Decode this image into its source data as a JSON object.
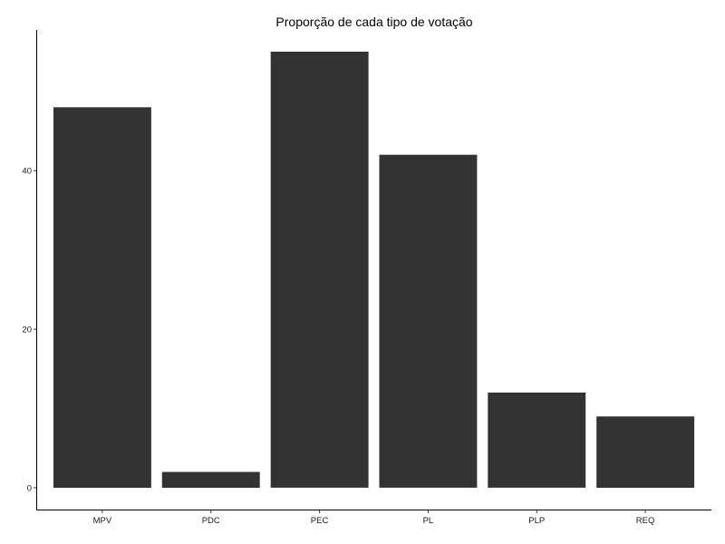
{
  "chart_data": {
    "type": "bar",
    "title": "Proporção de cada tipo de votação",
    "xlabel": "",
    "ylabel": "",
    "categories": [
      "MPV",
      "PDC",
      "PEC",
      "PL",
      "PLP",
      "REQ"
    ],
    "values": [
      48,
      2,
      55,
      42,
      12,
      9
    ],
    "yticks": [
      0,
      20,
      40
    ],
    "ylim": [
      -2.75,
      57.75
    ],
    "grid": false,
    "legend": "none",
    "bar_color": "#333333"
  }
}
